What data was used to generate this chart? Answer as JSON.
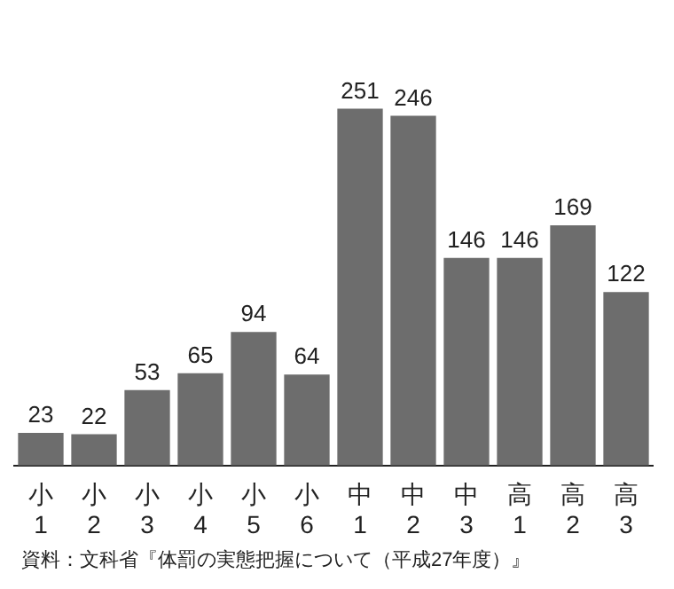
{
  "chart_data": {
    "type": "bar",
    "categories": [
      "小1",
      "小2",
      "小3",
      "小4",
      "小5",
      "小6",
      "中1",
      "中2",
      "中3",
      "高1",
      "高2",
      "高3"
    ],
    "values": [
      23,
      22,
      53,
      65,
      94,
      64,
      251,
      246,
      146,
      146,
      169,
      122
    ],
    "color": "#6d6d6d",
    "data_labels": true,
    "grid": false,
    "legend": false,
    "tick_labels": "x",
    "annotations": [
      "資料：文科省『体罰の実態把握について（平成27年度）』"
    ]
  }
}
